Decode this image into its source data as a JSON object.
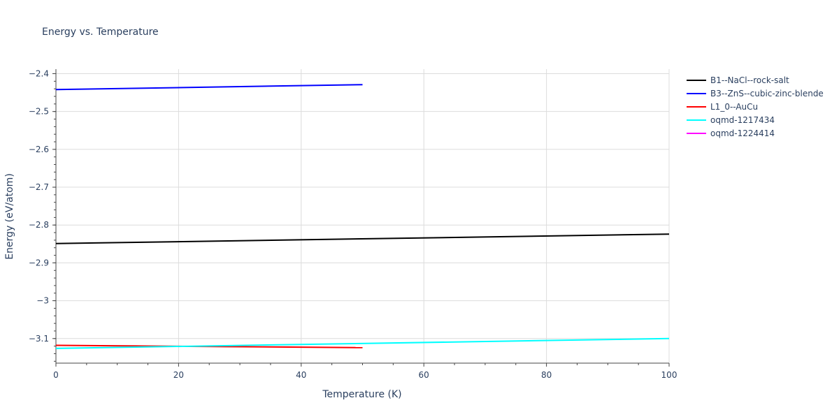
{
  "chart_data": {
    "type": "line",
    "title": "Energy vs. Temperature",
    "xlabel": "Temperature (K)",
    "ylabel": "Energy (eV/atom)",
    "xlim": [
      0,
      100
    ],
    "ylim": [
      -3.165,
      -2.388
    ],
    "xticks": [
      0,
      20,
      40,
      60,
      80,
      100
    ],
    "xtick_labels": [
      "0",
      "20",
      "40",
      "60",
      "80",
      "100"
    ],
    "yticks": [
      -2.4,
      -2.5,
      -2.6,
      -2.7,
      -2.8,
      -2.9,
      -3.0,
      -3.1
    ],
    "ytick_labels": [
      "−2.4",
      "−2.5",
      "−2.6",
      "−2.7",
      "−2.8",
      "−2.9",
      "−3",
      "−3.1"
    ],
    "grid": true,
    "legend_position": "right",
    "series": [
      {
        "name": "B1--NaCl--rock-salt",
        "color": "#000000",
        "x": [
          0,
          100
        ],
        "y": [
          -2.849,
          -2.824
        ]
      },
      {
        "name": "B3--ZnS--cubic-zinc-blende",
        "color": "#0000ff",
        "x": [
          0,
          50
        ],
        "y": [
          -2.442,
          -2.429
        ]
      },
      {
        "name": "L1_0--AuCu",
        "color": "#ff0000",
        "x": [
          0,
          50
        ],
        "y": [
          -3.118,
          -3.124
        ]
      },
      {
        "name": "oqmd-1217434",
        "color": "#00ffff",
        "x": [
          0,
          100
        ],
        "y": [
          -3.126,
          -3.1
        ]
      },
      {
        "name": "oqmd-1224414",
        "color": "#ff00ff",
        "x": [],
        "y": []
      }
    ]
  }
}
